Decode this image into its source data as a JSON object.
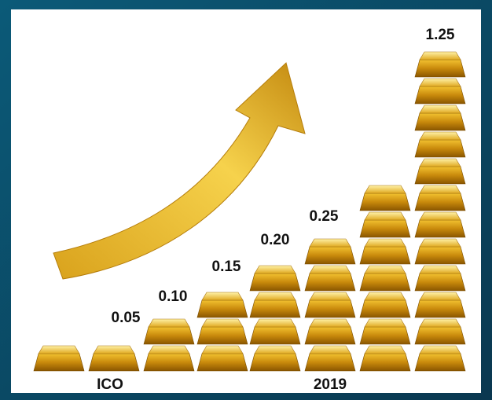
{
  "price_labels": [
    "0.05",
    "0.10",
    "0.15",
    "0.20",
    "0.25",
    "1.25"
  ],
  "period_labels": [
    "ICO",
    "2019"
  ]
}
